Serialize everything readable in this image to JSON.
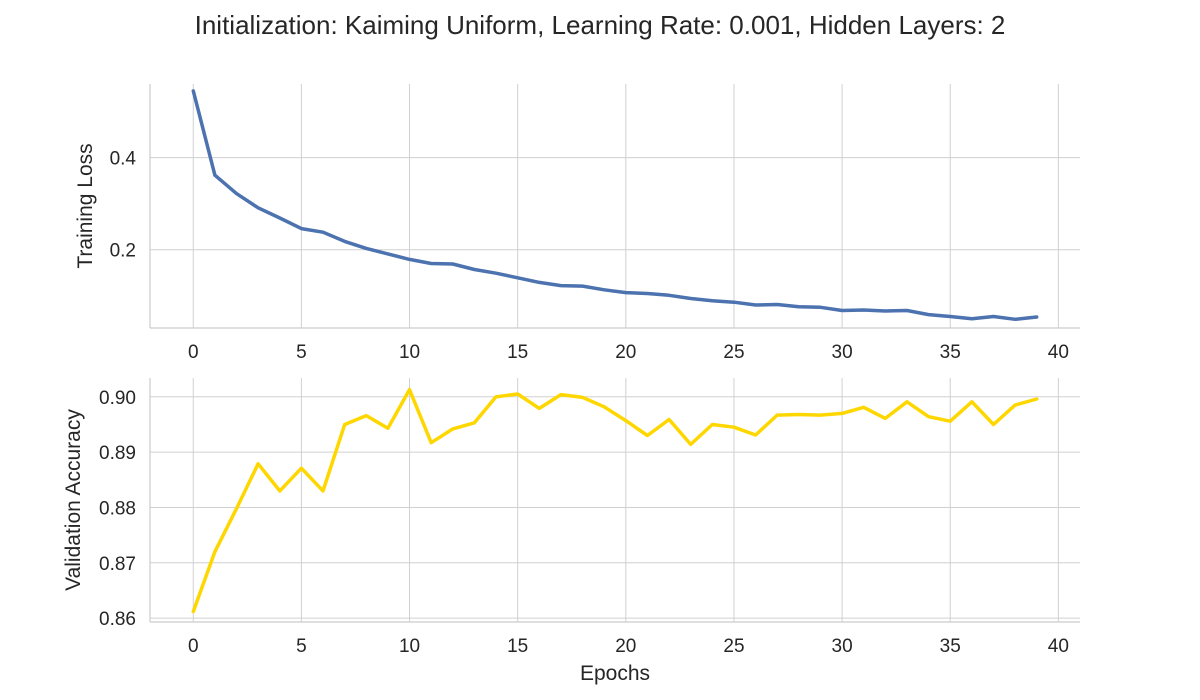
{
  "figure": {
    "title": "Initialization: Kaiming Uniform, Learning Rate: 0.001, Hidden Layers: 2"
  },
  "chart_data": [
    {
      "type": "line",
      "title": "",
      "xlabel": "",
      "ylabel": "Training Loss",
      "xlim": [
        -2,
        41
      ],
      "ylim": [
        0.03,
        0.56
      ],
      "xticks": [
        0,
        5,
        10,
        15,
        20,
        25,
        30,
        35,
        40
      ],
      "yticks": [
        0.2,
        0.4
      ],
      "ytick_labels": [
        "0.2",
        "0.4"
      ],
      "grid": true,
      "color": "#4c72b0",
      "x": [
        0,
        1,
        2,
        3,
        4,
        5,
        6,
        7,
        8,
        9,
        10,
        11,
        12,
        13,
        14,
        15,
        16,
        17,
        18,
        19,
        20,
        21,
        22,
        23,
        24,
        25,
        26,
        27,
        28,
        29,
        30,
        31,
        32,
        33,
        34,
        35,
        36,
        37,
        38,
        39
      ],
      "y": [
        0.545,
        0.362,
        0.322,
        0.291,
        0.269,
        0.246,
        0.238,
        0.218,
        0.203,
        0.191,
        0.179,
        0.17,
        0.169,
        0.157,
        0.149,
        0.139,
        0.129,
        0.122,
        0.121,
        0.113,
        0.107,
        0.105,
        0.101,
        0.094,
        0.089,
        0.086,
        0.08,
        0.081,
        0.076,
        0.075,
        0.068,
        0.069,
        0.067,
        0.068,
        0.059,
        0.055,
        0.05,
        0.055,
        0.049,
        0.054
      ]
    },
    {
      "type": "line",
      "title": "",
      "xlabel": "Epochs",
      "ylabel": "Validation Accuracy",
      "xlim": [
        -2,
        41
      ],
      "ylim": [
        0.8593,
        0.9034
      ],
      "xticks": [
        0,
        5,
        10,
        15,
        20,
        25,
        30,
        35,
        40
      ],
      "yticks": [
        0.86,
        0.87,
        0.88,
        0.89,
        0.9
      ],
      "ytick_labels": [
        "0.86",
        "0.87",
        "0.88",
        "0.89",
        "0.90"
      ],
      "grid": true,
      "color": "#ffd700",
      "x": [
        0,
        1,
        2,
        3,
        4,
        5,
        6,
        7,
        8,
        9,
        10,
        11,
        12,
        13,
        14,
        15,
        16,
        17,
        18,
        19,
        20,
        21,
        22,
        23,
        24,
        25,
        26,
        27,
        28,
        29,
        30,
        31,
        32,
        33,
        34,
        35,
        36,
        37,
        38,
        39
      ],
      "y": [
        0.8612,
        0.872,
        0.8798,
        0.8879,
        0.883,
        0.8871,
        0.883,
        0.895,
        0.8966,
        0.8943,
        0.9013,
        0.8917,
        0.8942,
        0.8953,
        0.9,
        0.9005,
        0.8979,
        0.9004,
        0.8999,
        0.8982,
        0.8957,
        0.893,
        0.8959,
        0.8914,
        0.895,
        0.8945,
        0.8931,
        0.8967,
        0.8968,
        0.8967,
        0.897,
        0.8981,
        0.8961,
        0.8991,
        0.8964,
        0.8956,
        0.8991,
        0.895,
        0.8985,
        0.8996
      ]
    }
  ]
}
